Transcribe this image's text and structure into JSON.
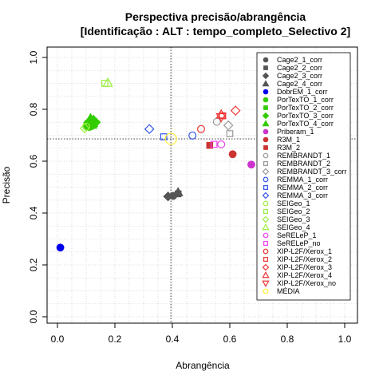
{
  "chart_data": {
    "type": "scatter",
    "title": "Perspectiva precisão/abrangência",
    "subtitle": "[Identificação : ALT : tempo_completo_Selectivo 2]",
    "xlabel": "Abrangência",
    "ylabel": "Precisão",
    "xlim": [
      0.0,
      1.0
    ],
    "ylim": [
      0.0,
      1.0
    ],
    "x_ticks": [
      "0.0",
      "0.2",
      "0.4",
      "0.6",
      "0.8",
      "1.0"
    ],
    "y_ticks": [
      "0.0",
      "0.2",
      "0.4",
      "0.6",
      "0.8",
      "1.0"
    ],
    "grid": true,
    "legend_position": "right",
    "reference_lines": {
      "x": 0.395,
      "y": 0.686
    },
    "series": [
      {
        "name": "Cage2_1_corr",
        "marker": "circle",
        "fill": "#555555",
        "stroke": "#555555",
        "points": [
          [
            0.403,
            0.466
          ]
        ]
      },
      {
        "name": "Cage2_2_corr",
        "marker": "square",
        "fill": "#555555",
        "stroke": "#555555",
        "points": [
          [
            0.42,
            0.474
          ]
        ]
      },
      {
        "name": "Cage2_3_corr",
        "marker": "diamond",
        "fill": "#555555",
        "stroke": "#555555",
        "points": [
          [
            0.385,
            0.464
          ]
        ]
      },
      {
        "name": "Cage2_4_corr",
        "marker": "triangle",
        "fill": "#555555",
        "stroke": "#555555",
        "points": [
          [
            0.42,
            0.48
          ]
        ]
      },
      {
        "name": "DobrEM_1_corr",
        "marker": "circle",
        "fill": "#0000ee",
        "stroke": "#0000ee",
        "points": [
          [
            0.01,
            0.267
          ]
        ]
      },
      {
        "name": "PorTexTO_1_corr",
        "marker": "circle",
        "fill": "#33cc00",
        "stroke": "#33cc00",
        "points": [
          [
            0.11,
            0.74
          ]
        ]
      },
      {
        "name": "PorTexTO_2_corr",
        "marker": "square",
        "fill": "#33cc00",
        "stroke": "#33cc00",
        "points": [
          [
            0.12,
            0.745
          ]
        ]
      },
      {
        "name": "PorTexTO_3_corr",
        "marker": "diamond",
        "fill": "#33cc00",
        "stroke": "#33cc00",
        "points": [
          [
            0.125,
            0.75
          ]
        ]
      },
      {
        "name": "PorTexTO_4_corr",
        "marker": "triangle",
        "fill": "#33cc00",
        "stroke": "#33cc00",
        "points": [
          [
            0.115,
            0.755
          ]
        ]
      },
      {
        "name": "Priberam_1",
        "marker": "circle",
        "fill": "#cc33cc",
        "stroke": "#cc33cc",
        "points": [
          [
            0.675,
            0.587
          ]
        ]
      },
      {
        "name": "R3M_1",
        "marker": "circle",
        "fill": "#cc3333",
        "stroke": "#cc3333",
        "points": [
          [
            0.61,
            0.627
          ]
        ]
      },
      {
        "name": "R3M_2",
        "marker": "square",
        "fill": "#cc3333",
        "stroke": "#cc3333",
        "points": [
          [
            0.53,
            0.661
          ]
        ]
      },
      {
        "name": "REMBRANDT_1",
        "marker": "circle",
        "fill": "none",
        "stroke": "#999999",
        "points": [
          [
            0.555,
            0.752
          ]
        ]
      },
      {
        "name": "REMBRANDT_2",
        "marker": "square",
        "fill": "none",
        "stroke": "#999999",
        "points": [
          [
            0.6,
            0.706
          ]
        ]
      },
      {
        "name": "REMBRANDT_3_corr",
        "marker": "diamond",
        "fill": "none",
        "stroke": "#999999",
        "points": [
          [
            0.595,
            0.738
          ]
        ]
      },
      {
        "name": "REMMA_1_corr",
        "marker": "circle",
        "fill": "none",
        "stroke": "#3355ee",
        "points": [
          [
            0.47,
            0.699
          ]
        ]
      },
      {
        "name": "REMMA_2_corr",
        "marker": "square",
        "fill": "none",
        "stroke": "#3355ee",
        "points": [
          [
            0.37,
            0.694
          ]
        ]
      },
      {
        "name": "REMMA_3_corr",
        "marker": "diamond",
        "fill": "none",
        "stroke": "#3355ee",
        "points": [
          [
            0.32,
            0.724
          ]
        ]
      },
      {
        "name": "SEIGeo_1",
        "marker": "circle",
        "fill": "none",
        "stroke": "#99ee44",
        "points": [
          [
            0.1,
            0.733
          ]
        ]
      },
      {
        "name": "SEIGeo_2",
        "marker": "square",
        "fill": "none",
        "stroke": "#99ee44",
        "points": [
          [
            0.165,
            0.9
          ]
        ]
      },
      {
        "name": "SEIGeo_3",
        "marker": "diamond",
        "fill": "none",
        "stroke": "#99ee44",
        "points": [
          [
            0.095,
            0.727
          ]
        ]
      },
      {
        "name": "SEIGeo_4",
        "marker": "triangle",
        "fill": "none",
        "stroke": "#99ee44",
        "points": [
          [
            0.175,
            0.902
          ]
        ]
      },
      {
        "name": "SeRELeP_1",
        "marker": "circle",
        "fill": "none",
        "stroke": "#ee44ee",
        "points": [
          [
            0.57,
            0.665
          ]
        ]
      },
      {
        "name": "SeRELeP_no",
        "marker": "square",
        "fill": "none",
        "stroke": "#ee44ee",
        "points": [
          [
            0.545,
            0.665
          ]
        ]
      },
      {
        "name": "XIP-L2F/Xerox_1",
        "marker": "circle",
        "fill": "none",
        "stroke": "#ee3333",
        "points": [
          [
            0.5,
            0.724
          ]
        ]
      },
      {
        "name": "XIP-L2F/Xerox_2",
        "marker": "square",
        "fill": "none",
        "stroke": "#ee3333",
        "points": [
          [
            0.575,
            0.775
          ]
        ]
      },
      {
        "name": "XIP-L2F/Xerox_3",
        "marker": "diamond",
        "fill": "none",
        "stroke": "#ee3333",
        "points": [
          [
            0.62,
            0.795
          ]
        ]
      },
      {
        "name": "XIP-L2F/Xerox_4",
        "marker": "triangle",
        "fill": "none",
        "stroke": "#ee3333",
        "points": [
          [
            0.57,
            0.78
          ]
        ]
      },
      {
        "name": "XIP-L2F/Xerox_no",
        "marker": "triangle-down",
        "fill": "none",
        "stroke": "#ee3333",
        "points": [
          [
            0.57,
            0.77
          ]
        ]
      },
      {
        "name": "MÉDIA",
        "marker": "circle",
        "fill": "none",
        "stroke": "#ffee33",
        "points": [
          [
            0.395,
            0.686
          ]
        ]
      }
    ]
  }
}
